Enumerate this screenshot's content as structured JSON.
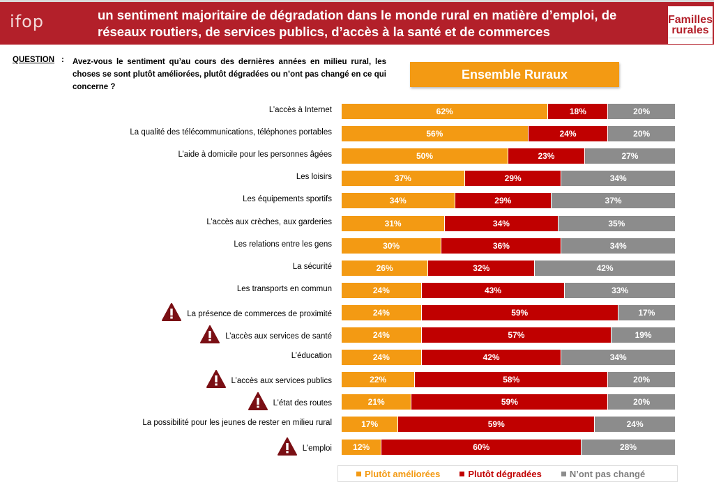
{
  "header": {
    "brand": "ifop",
    "title": "un sentiment majoritaire de dégradation dans le monde rural en matière d’emploi, de réseaux routiers, de services publics, d’accès à la santé et de commerces",
    "partner_logo": "Familles rurales"
  },
  "question": {
    "label": "QUESTION",
    "colon": ":",
    "text": "Avez-vous le sentiment qu’au cours des dernières années en milieu rural, les choses se sont plutôt améliorées, plutôt dégradées ou n’ont pas changé en ce qui concerne ?"
  },
  "chart_data": {
    "type": "bar",
    "orientation": "horizontal",
    "stacked": true,
    "title": "Ensemble Ruraux",
    "categories": [
      "L’accès à Internet",
      "La qualité des télécommunications, téléphones portables",
      "L’aide à domicile pour les personnes âgées",
      "Les loisirs",
      "Les équipements sportifs",
      "L’accès aux crèches, aux garderies",
      "Les relations entre les gens",
      "La sécurité",
      "Les transports en commun",
      "La présence de commerces de proximité",
      "L’accès aux services de santé",
      "L’éducation",
      "L’accès aux services publics",
      "L’état des routes",
      "La possibilité pour les jeunes de rester en milieu rural",
      "L’emploi"
    ],
    "warning": [
      false,
      false,
      false,
      false,
      false,
      false,
      false,
      false,
      false,
      true,
      true,
      false,
      true,
      true,
      false,
      true
    ],
    "series": [
      {
        "name": "Plutôt améliorées",
        "color": "#f39a13",
        "values": [
          62,
          56,
          50,
          37,
          34,
          31,
          30,
          26,
          24,
          24,
          24,
          24,
          22,
          21,
          17,
          12
        ]
      },
      {
        "name": "Plutôt dégradées",
        "color": "#c00000",
        "values": [
          18,
          24,
          23,
          29,
          29,
          34,
          36,
          32,
          43,
          59,
          57,
          42,
          58,
          59,
          59,
          60
        ]
      },
      {
        "name": "N’ont pas changé",
        "color": "#8c8c8c",
        "values": [
          20,
          20,
          27,
          34,
          37,
          35,
          34,
          42,
          33,
          17,
          19,
          34,
          20,
          20,
          24,
          28
        ]
      }
    ],
    "unit": "%",
    "legend_position": "bottom"
  }
}
